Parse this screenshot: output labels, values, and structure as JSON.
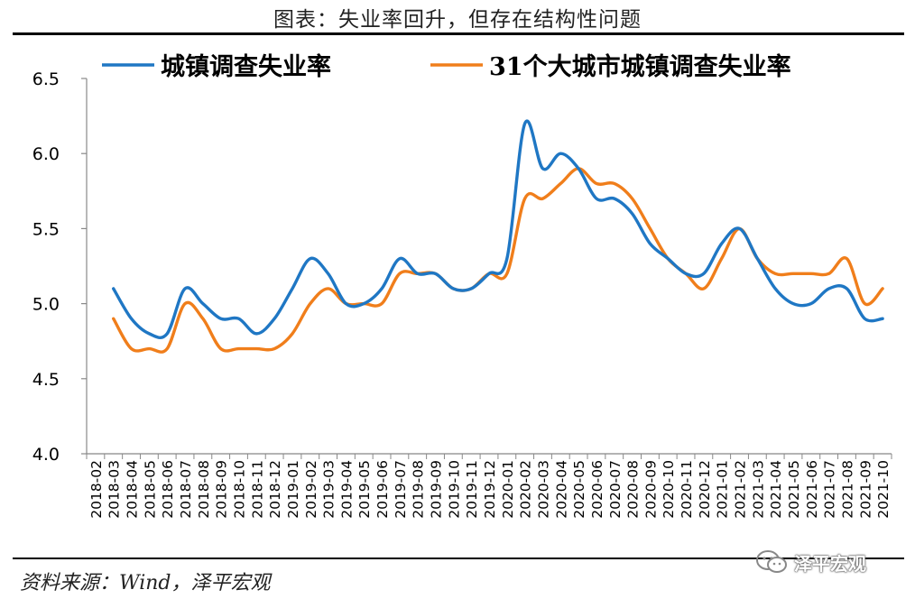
{
  "title": "图表：失业率回升，但存在结构性问题",
  "source": "资料来源：Wind，泽平宏观",
  "watermark": "泽平宏观",
  "chart_data": {
    "type": "line",
    "ylim": [
      4.0,
      6.5
    ],
    "yticks": [
      4.0,
      4.5,
      5.0,
      5.5,
      6.0,
      6.5
    ],
    "ytick_labels": [
      "4.0",
      "4.5",
      "5.0",
      "5.5",
      "6.0",
      "6.5"
    ],
    "grid": false,
    "legend_position": "top",
    "categories": [
      "2018-02",
      "2018-03",
      "2018-04",
      "2018-05",
      "2018-06",
      "2018-07",
      "2018-08",
      "2018-09",
      "2018-10",
      "2018-11",
      "2018-12",
      "2019-01",
      "2019-02",
      "2019-03",
      "2019-04",
      "2019-05",
      "2019-06",
      "2019-07",
      "2019-08",
      "2019-09",
      "2019-10",
      "2019-11",
      "2019-12",
      "2020-01",
      "2020-02",
      "2020-03",
      "2020-04",
      "2020-05",
      "2020-06",
      "2020-07",
      "2020-08",
      "2020-09",
      "2020-10",
      "2020-11",
      "2020-12",
      "2021-01",
      "2021-02",
      "2021-03",
      "2021-04",
      "2021-05",
      "2021-06",
      "2021-07",
      "2021-08",
      "2021-09",
      "2021-10"
    ],
    "series": [
      {
        "name": "城镇调查失业率",
        "color": "#1f77c4",
        "values": [
          null,
          5.1,
          4.9,
          4.8,
          4.8,
          5.1,
          5.0,
          4.9,
          4.9,
          4.8,
          4.9,
          5.1,
          5.3,
          5.2,
          5.0,
          5.0,
          5.1,
          5.3,
          5.2,
          5.2,
          5.1,
          5.1,
          5.2,
          5.3,
          6.2,
          5.9,
          6.0,
          5.9,
          5.7,
          5.7,
          5.6,
          5.4,
          5.3,
          5.2,
          5.2,
          5.4,
          5.5,
          5.3,
          5.1,
          5.0,
          5.0,
          5.1,
          5.1,
          4.9,
          4.9
        ]
      },
      {
        "name": "31个大城市城镇调查失业率",
        "color": "#f07e1b",
        "values": [
          null,
          4.9,
          4.7,
          4.7,
          4.7,
          5.0,
          4.9,
          4.7,
          4.7,
          4.7,
          4.7,
          4.8,
          5.0,
          5.1,
          5.0,
          5.0,
          5.0,
          5.2,
          5.2,
          5.2,
          5.1,
          5.1,
          5.2,
          5.2,
          5.7,
          5.7,
          5.8,
          5.9,
          5.8,
          5.8,
          5.7,
          5.5,
          5.3,
          5.2,
          5.1,
          5.3,
          5.5,
          5.3,
          5.2,
          5.2,
          5.2,
          5.2,
          5.3,
          5.0,
          5.1
        ]
      }
    ]
  }
}
